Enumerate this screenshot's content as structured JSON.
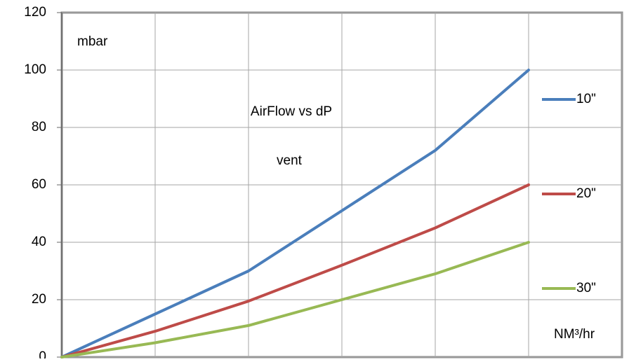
{
  "chart_data": {
    "type": "line",
    "title": "AirFlow vs dP",
    "subtitle": "vent",
    "y_label": "mbar",
    "x_label": "NM³/hr",
    "x": [
      0,
      1,
      2,
      3,
      4,
      5
    ],
    "xlim": [
      0,
      6
    ],
    "xticks": [
      0,
      1,
      2,
      3,
      4,
      5,
      6
    ],
    "ylim": [
      0,
      120
    ],
    "yticks": [
      0,
      20,
      40,
      60,
      80,
      100,
      120
    ],
    "grid": true,
    "legend": "right",
    "series": [
      {
        "name": "10\"",
        "color": "#4a7ebb",
        "values": [
          0,
          15,
          30,
          51,
          72,
          100
        ]
      },
      {
        "name": "20\"",
        "color": "#be4b48",
        "values": [
          0,
          9,
          19.5,
          32,
          45,
          60
        ]
      },
      {
        "name": "30\"",
        "color": "#98b954",
        "values": [
          0,
          5,
          11,
          20,
          29,
          40
        ]
      }
    ]
  }
}
